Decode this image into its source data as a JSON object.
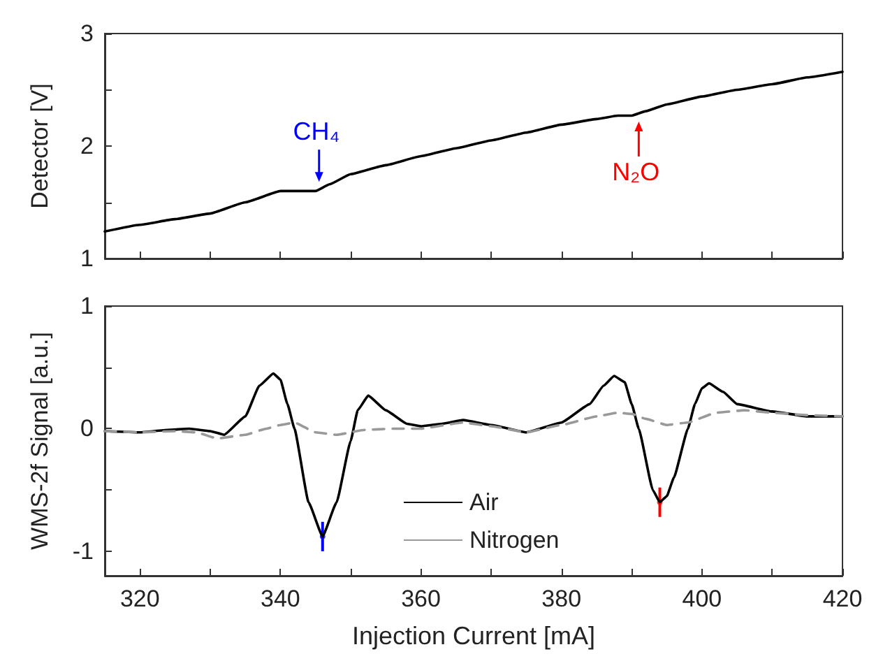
{
  "chart_data": [
    {
      "type": "line",
      "ylabel": "Detector [V]",
      "xlim": [
        315,
        420
      ],
      "xticks": [
        320,
        {
          "value": 330,
          "label": null
        },
        340,
        {
          "value": 350,
          "label": null
        },
        360,
        {
          "value": 370,
          "label": null
        },
        380,
        {
          "value": 390,
          "label": null
        },
        400,
        {
          "value": 410,
          "label": null
        },
        420
      ],
      "ylim": [
        1,
        3
      ],
      "yticks": [
        1,
        {
          "value": 1.5,
          "label": null
        },
        2,
        {
          "value": 2.5,
          "label": null
        },
        3
      ],
      "tick_labels": "y",
      "marker": "none",
      "grid": false,
      "legend": false,
      "annotations": [
        {
          "text": "CH₄",
          "x": 345.5,
          "y": 1.62
        },
        {
          "text": "N₂O",
          "x": 391,
          "y": 2.28
        }
      ],
      "series": [
        {
          "color": "#000000",
          "x": [
            315,
            320,
            325,
            330,
            335,
            340,
            343,
            345,
            347,
            350,
            355,
            360,
            365,
            370,
            375,
            380,
            385,
            388,
            390,
            392,
            395,
            400,
            405,
            410,
            415,
            420
          ],
          "values": [
            1.24,
            1.3,
            1.35,
            1.4,
            1.5,
            1.6,
            1.6,
            1.6,
            1.66,
            1.75,
            1.83,
            1.91,
            1.98,
            2.05,
            2.12,
            2.19,
            2.24,
            2.27,
            2.27,
            2.31,
            2.37,
            2.44,
            2.5,
            2.55,
            2.61,
            2.66
          ]
        }
      ]
    },
    {
      "type": "line",
      "xlabel": "Injection Current [mA]",
      "ylabel": "WMS-2f Signal [a.u.]",
      "xlim": [
        315,
        420
      ],
      "xticks": [
        320,
        {
          "value": 330,
          "label": null
        },
        340,
        {
          "value": 350,
          "label": null
        },
        360,
        {
          "value": 370,
          "label": null
        },
        380,
        {
          "value": 390,
          "label": null
        },
        400,
        {
          "value": 410,
          "label": null
        },
        420
      ],
      "ylim": [
        -1.2,
        1
      ],
      "yticks": [
        -1,
        {
          "value": -0.5,
          "label": null
        },
        0,
        {
          "value": 0.5,
          "label": null
        },
        1
      ],
      "marker": "none",
      "grid": false,
      "legend": "bottom",
      "series": [
        {
          "name": "Air",
          "color": "#000000",
          "line_style": "solid",
          "x": [
            315,
            320,
            324,
            327,
            330,
            332,
            335,
            337,
            339,
            340,
            341,
            342,
            344,
            346,
            348,
            350,
            351,
            352.5,
            355,
            358,
            360,
            363,
            366,
            370,
            375,
            380,
            384,
            386,
            387.5,
            389,
            390,
            391,
            393,
            394,
            395,
            396,
            398,
            399,
            400,
            401,
            403,
            405,
            410,
            415,
            420
          ],
          "values": [
            -0.02,
            -0.03,
            -0.01,
            0.0,
            -0.02,
            -0.05,
            0.1,
            0.35,
            0.45,
            0.4,
            0.2,
            0.0,
            -0.6,
            -0.88,
            -0.6,
            -0.1,
            0.15,
            0.27,
            0.15,
            0.04,
            0.02,
            0.04,
            0.07,
            0.03,
            -0.03,
            0.05,
            0.2,
            0.35,
            0.43,
            0.38,
            0.2,
            0.0,
            -0.5,
            -0.6,
            -0.55,
            -0.4,
            0.0,
            0.2,
            0.33,
            0.37,
            0.3,
            0.2,
            0.14,
            0.1,
            0.1
          ]
        },
        {
          "name": "Nitrogen",
          "color": "#999999",
          "line_style": "dashed",
          "x": [
            315,
            320,
            325,
            328,
            331,
            335,
            338,
            340,
            342,
            345,
            348,
            352,
            356,
            360,
            366,
            370,
            375,
            380,
            385,
            388,
            390,
            392,
            395,
            398,
            402,
            406,
            410,
            415,
            420
          ],
          "values": [
            -0.02,
            -0.03,
            -0.02,
            -0.03,
            -0.08,
            -0.05,
            0.0,
            0.03,
            0.05,
            -0.03,
            -0.05,
            -0.01,
            0.0,
            0.0,
            0.05,
            0.02,
            -0.03,
            0.03,
            0.1,
            0.13,
            0.12,
            0.08,
            0.03,
            0.05,
            0.13,
            0.15,
            0.13,
            0.11,
            0.1
          ]
        },
        {
          "type": "scatter",
          "marker": "circle",
          "x": [
            346,
            394
          ],
          "values": [
            -0.88,
            -0.6
          ],
          "errors": [
            0.12,
            0.12
          ],
          "colors": [
            "#0000ff",
            "#ff0000"
          ]
        }
      ]
    }
  ]
}
